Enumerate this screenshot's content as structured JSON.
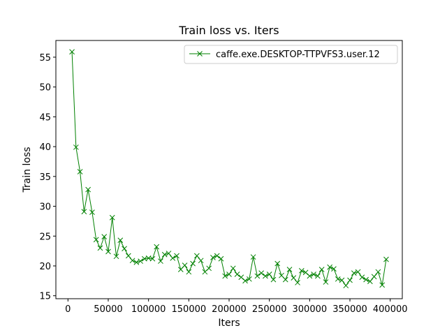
{
  "chart_data": {
    "type": "line",
    "title": "Train loss  vs. Iters",
    "xlabel": "Iters",
    "ylabel": "Train loss",
    "xlim": [
      -15000,
      415000
    ],
    "ylim": [
      14.5,
      57.8
    ],
    "xticks": [
      0,
      50000,
      100000,
      150000,
      200000,
      250000,
      300000,
      350000,
      400000
    ],
    "xtick_labels": [
      "0",
      "50000",
      "100000",
      "150000",
      "200000",
      "250000",
      "300000",
      "350000",
      "400000"
    ],
    "yticks": [
      15,
      20,
      25,
      30,
      35,
      40,
      45,
      50,
      55
    ],
    "ytick_labels": [
      "15",
      "20",
      "25",
      "30",
      "35",
      "40",
      "45",
      "50",
      "55"
    ],
    "grid": false,
    "legend_position": "top-right",
    "series": [
      {
        "name": "caffe.exe.DESKTOP-TTPVFS3.user.12",
        "color": "#008000",
        "marker": "x",
        "x": [
          5000,
          10000,
          15000,
          20000,
          25000,
          30000,
          35000,
          40000,
          45000,
          50000,
          55000,
          60000,
          65000,
          70000,
          75000,
          80000,
          85000,
          90000,
          95000,
          100000,
          105000,
          110000,
          115000,
          120000,
          125000,
          130000,
          135000,
          140000,
          145000,
          150000,
          155000,
          160000,
          165000,
          170000,
          175000,
          180000,
          185000,
          190000,
          195000,
          200000,
          205000,
          210000,
          215000,
          220000,
          225000,
          230000,
          235000,
          240000,
          245000,
          250000,
          255000,
          260000,
          265000,
          270000,
          275000,
          280000,
          285000,
          290000,
          295000,
          300000,
          305000,
          310000,
          315000,
          320000,
          325000,
          330000,
          335000,
          340000,
          345000,
          350000,
          355000,
          360000,
          365000,
          370000,
          375000,
          380000,
          385000,
          390000,
          395000
        ],
        "y": [
          55.9,
          39.9,
          35.8,
          29.1,
          32.8,
          29.0,
          24.4,
          23.0,
          24.9,
          22.4,
          28.1,
          21.6,
          24.3,
          22.9,
          21.7,
          20.9,
          20.6,
          20.8,
          21.2,
          21.3,
          21.2,
          23.2,
          20.8,
          21.9,
          22.1,
          21.3,
          21.7,
          19.4,
          20.1,
          19.0,
          20.4,
          21.7,
          20.9,
          19.0,
          19.6,
          21.4,
          21.7,
          21.2,
          18.3,
          18.6,
          19.6,
          18.6,
          18.1,
          17.5,
          17.8,
          21.5,
          18.3,
          18.8,
          18.3,
          18.6,
          17.7,
          20.4,
          18.4,
          17.7,
          19.4,
          18.0,
          17.2,
          19.2,
          18.9,
          18.3,
          18.6,
          18.3,
          19.4,
          17.3,
          19.8,
          19.5,
          17.8,
          17.6,
          16.7,
          17.6,
          18.8,
          19.0,
          18.1,
          17.7,
          17.4,
          18.2,
          19.0,
          16.8,
          21.1
        ]
      }
    ]
  }
}
